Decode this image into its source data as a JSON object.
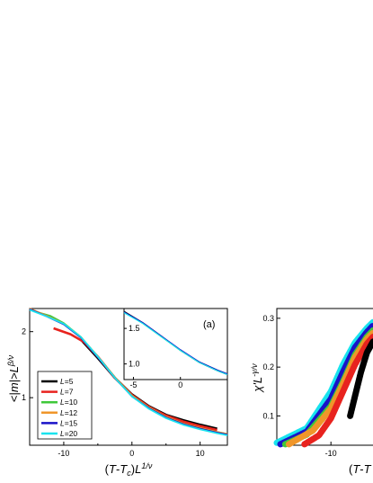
{
  "colors": {
    "L=5": "#000000",
    "L=7": "#e8231e",
    "L=10": "#3fc83a",
    "L=12": "#f0962a",
    "L=15": "#1a12c8",
    "L=20": "#19e3ee"
  },
  "chart_data": [
    {
      "type": "line",
      "panel_label": "(a)",
      "xlabel": "(T-Tc)L1/ν",
      "ylabel": "<|m|>Lβ/ν",
      "xlim": [
        -15,
        14
      ],
      "ylim": [
        0.28,
        2.35
      ],
      "x_ticks": [
        "-10",
        "0",
        "10"
      ],
      "y_ticks": [
        "1",
        "2"
      ],
      "legend": [
        "L=5",
        "L=7",
        "L=10",
        "L=12",
        "L=15",
        "L=20"
      ],
      "legend_position": "bottom-left",
      "series": [
        {
          "name": "L=5",
          "x": [
            -7.5,
            -5,
            -2.5,
            0,
            2.5,
            5,
            7.5,
            10,
            12.5
          ],
          "y": [
            1.88,
            1.6,
            1.3,
            1.05,
            0.87,
            0.74,
            0.66,
            0.59,
            0.53
          ]
        },
        {
          "name": "L=7",
          "x": [
            -11.5,
            -9,
            -7,
            -5,
            -2.5,
            0,
            2.5,
            5,
            7.5,
            10,
            12.5
          ],
          "y": [
            2.05,
            1.96,
            1.84,
            1.62,
            1.3,
            1.04,
            0.86,
            0.73,
            0.64,
            0.57,
            0.51
          ]
        },
        {
          "name": "L=10",
          "x": [
            -14,
            -12,
            -10,
            -7.5,
            -5,
            -2.5,
            0,
            2.5,
            5,
            7.5,
            10,
            12.5,
            14
          ],
          "y": [
            2.3,
            2.24,
            2.13,
            1.92,
            1.62,
            1.31,
            1.03,
            0.85,
            0.71,
            0.61,
            0.54,
            0.48,
            0.45
          ]
        },
        {
          "name": "L=12",
          "x": [
            -15,
            -12.5,
            -10,
            -7.5,
            -5,
            -2.5,
            0,
            2.5,
            5,
            7.5,
            10,
            12.5,
            14
          ],
          "y": [
            2.35,
            2.24,
            2.12,
            1.92,
            1.62,
            1.31,
            1.03,
            0.85,
            0.71,
            0.61,
            0.54,
            0.48,
            0.45
          ]
        },
        {
          "name": "L=15",
          "x": [
            -15,
            -12.5,
            -10,
            -7.5,
            -5,
            -2.5,
            0,
            2.5,
            5,
            7.5,
            10,
            12.5,
            14
          ],
          "y": [
            2.34,
            2.23,
            2.11,
            1.91,
            1.61,
            1.3,
            1.02,
            0.84,
            0.7,
            0.6,
            0.53,
            0.47,
            0.44
          ]
        },
        {
          "name": "L=20",
          "x": [
            -15,
            -12.5,
            -10,
            -7.5,
            -5,
            -2.5,
            0,
            2.5,
            5,
            7.5,
            10,
            12.5,
            14
          ],
          "y": [
            2.33,
            2.23,
            2.12,
            1.92,
            1.62,
            1.3,
            1.02,
            0.83,
            0.69,
            0.59,
            0.52,
            0.46,
            0.43
          ]
        }
      ]
    },
    {
      "type": "line",
      "panel_label": "inset of (a)",
      "xlim": [
        -6,
        5
      ],
      "ylim": [
        0.78,
        1.78
      ],
      "x_ticks": [
        "-5",
        "0"
      ],
      "y_ticks": [
        "1.0",
        "1.5"
      ],
      "series": [
        {
          "name": "L=5",
          "x": [
            -6,
            -4,
            -2,
            0,
            2,
            4,
            5
          ],
          "y": [
            1.74,
            1.58,
            1.39,
            1.19,
            1.02,
            0.9,
            0.85
          ]
        },
        {
          "name": "L=10",
          "x": [
            -6,
            -4,
            -2,
            0,
            2,
            4,
            5
          ],
          "y": [
            1.73,
            1.57,
            1.38,
            1.19,
            1.03,
            0.91,
            0.86
          ]
        },
        {
          "name": "L=15",
          "x": [
            -6,
            -4,
            -2,
            0,
            2,
            4,
            5
          ],
          "y": [
            1.73,
            1.58,
            1.39,
            1.2,
            1.03,
            0.91,
            0.86
          ]
        },
        {
          "name": "L=20",
          "x": [
            -6,
            -4,
            -2,
            0,
            2,
            4,
            5
          ],
          "y": [
            1.72,
            1.57,
            1.38,
            1.19,
            1.02,
            0.9,
            0.85
          ]
        }
      ]
    },
    {
      "type": "scatter",
      "panel_label": "",
      "xlabel": "(T-T",
      "ylabel": "χ'L-γ/ν",
      "xlim": [
        -14.5,
        -6.5
      ],
      "ylim": [
        0.04,
        0.32
      ],
      "x_ticks": [
        "-10"
      ],
      "y_ticks": [
        "0.1",
        "0.2",
        "0.3"
      ],
      "series": [
        {
          "name": "L=20",
          "x": [
            -14.5,
            -12,
            -10,
            -9,
            -8,
            -7,
            -6.5
          ],
          "y": [
            0.045,
            0.075,
            0.15,
            0.205,
            0.25,
            0.28,
            0.292
          ]
        },
        {
          "name": "L=15",
          "x": [
            -14.2,
            -12,
            -10,
            -9,
            -8,
            -7,
            -6.5
          ],
          "y": [
            0.042,
            0.068,
            0.135,
            0.19,
            0.24,
            0.272,
            0.285
          ]
        },
        {
          "name": "L=10",
          "x": [
            -13.8,
            -12,
            -10,
            -9,
            -8,
            -7,
            -6.5
          ],
          "y": [
            0.042,
            0.062,
            0.12,
            0.17,
            0.225,
            0.262,
            0.275
          ]
        },
        {
          "name": "L=12",
          "x": [
            -13.5,
            -11.5,
            -10,
            -9,
            -8,
            -7,
            -6.5
          ],
          "y": [
            0.042,
            0.07,
            0.115,
            0.165,
            0.22,
            0.258,
            0.27
          ]
        },
        {
          "name": "L=7",
          "x": [
            -12.2,
            -11,
            -10,
            -9,
            -8,
            -7,
            -6.5
          ],
          "y": [
            0.042,
            0.06,
            0.095,
            0.15,
            0.205,
            0.248,
            0.262
          ]
        },
        {
          "name": "L=5",
          "x": [
            -8.4,
            -8,
            -7.5,
            -7,
            -6.5
          ],
          "y": [
            0.1,
            0.14,
            0.19,
            0.23,
            0.252
          ]
        }
      ]
    }
  ]
}
